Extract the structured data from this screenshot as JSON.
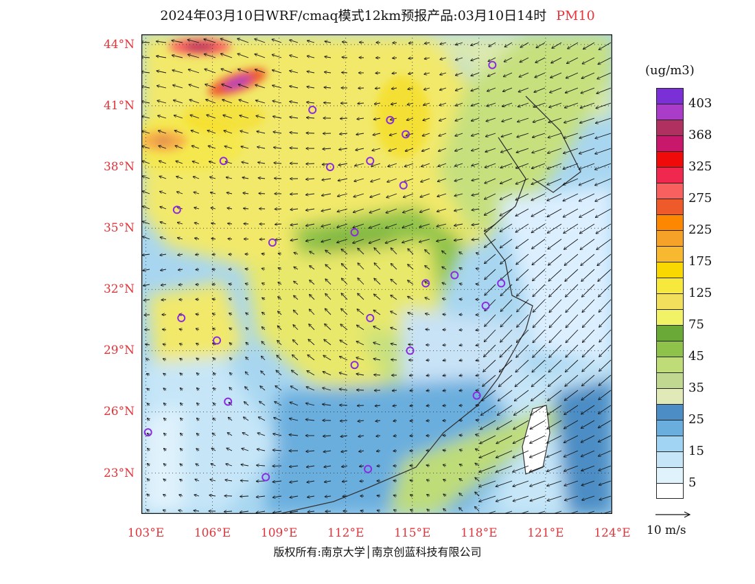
{
  "title": {
    "text": "2024年03月10日WRF/cmaq模式12km预报产品:03月10日14时",
    "pollutant": "PM10"
  },
  "axes": {
    "lat_labels": [
      "44°N",
      "41°N",
      "38°N",
      "35°N",
      "32°N",
      "29°N",
      "26°N",
      "23°N"
    ],
    "lat_values": [
      44,
      41,
      38,
      35,
      32,
      29,
      26,
      23
    ],
    "lon_labels": [
      "103°E",
      "106°E",
      "109°E",
      "112°E",
      "115°E",
      "118°E",
      "121°E",
      "124°E"
    ],
    "lon_values": [
      103,
      106,
      109,
      112,
      115,
      118,
      121,
      124
    ],
    "lon_range": [
      102.8,
      124
    ],
    "lat_range": [
      21,
      44.5
    ],
    "grid_lines": "dotted",
    "label_color": "#e0343a"
  },
  "legend": {
    "unit": "(ug/m3)",
    "ticks": [
      "403",
      "368",
      "325",
      "275",
      "225",
      "175",
      "125",
      "75",
      "45",
      "35",
      "25",
      "15",
      "5"
    ],
    "colors": [
      "#7b2fd6",
      "#a93cc9",
      "#b0305f",
      "#c8186c",
      "#f00a0a",
      "#f02850",
      "#f86060",
      "#ee5a2a",
      "#fd8800",
      "#f6a228",
      "#f8b830",
      "#f8d800",
      "#f6e83c",
      "#f2e05c",
      "#f2f266",
      "#6aa838",
      "#8ec24a",
      "#bedc78",
      "#c0d890",
      "#dfeab8",
      "#4b8dc4",
      "#6aaede",
      "#a0d4f2",
      "#c6e6f8",
      "#e0f2fc",
      "#ffffff"
    ]
  },
  "wind_reference": {
    "label": "10 m/s"
  },
  "stations": [
    {
      "lon": 118.6,
      "lat": 43.0
    },
    {
      "lon": 110.5,
      "lat": 40.8
    },
    {
      "lon": 114.0,
      "lat": 40.3
    },
    {
      "lon": 114.7,
      "lat": 39.6
    },
    {
      "lon": 106.5,
      "lat": 38.3
    },
    {
      "lon": 111.3,
      "lat": 38.0
    },
    {
      "lon": 113.1,
      "lat": 38.3
    },
    {
      "lon": 114.6,
      "lat": 37.1
    },
    {
      "lon": 104.4,
      "lat": 35.9
    },
    {
      "lon": 112.4,
      "lat": 34.8
    },
    {
      "lon": 108.7,
      "lat": 34.3
    },
    {
      "lon": 115.6,
      "lat": 32.3
    },
    {
      "lon": 116.9,
      "lat": 32.7
    },
    {
      "lon": 119.0,
      "lat": 32.3
    },
    {
      "lon": 118.3,
      "lat": 31.2
    },
    {
      "lon": 104.6,
      "lat": 30.6
    },
    {
      "lon": 113.1,
      "lat": 30.6
    },
    {
      "lon": 106.2,
      "lat": 29.5
    },
    {
      "lon": 114.9,
      "lat": 29.0
    },
    {
      "lon": 112.4,
      "lat": 28.3
    },
    {
      "lon": 106.7,
      "lat": 26.5
    },
    {
      "lon": 117.9,
      "lat": 26.8
    },
    {
      "lon": 103.1,
      "lat": 25.0
    },
    {
      "lon": 108.4,
      "lat": 22.8
    },
    {
      "lon": 113.0,
      "lat": 23.2
    }
  ],
  "copyright": {
    "text": "版权所有:南京大学│南京创蓝科技有限公司"
  }
}
